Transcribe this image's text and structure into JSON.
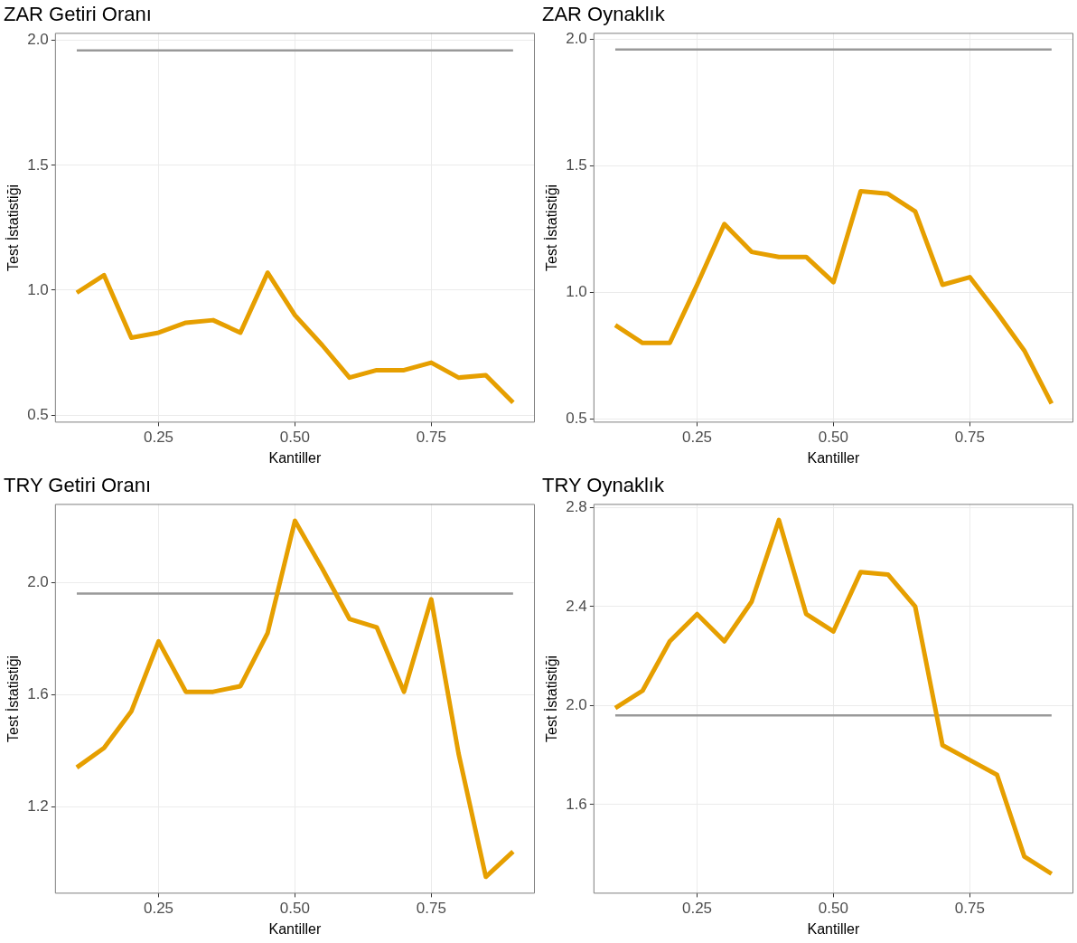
{
  "chart_data": [
    {
      "type": "line",
      "title": "ZAR Getiri Oranı",
      "xlabel": "Kantiller",
      "ylabel": "Test İstatistiği",
      "grid": true,
      "marker": "none",
      "xlim": [
        0.06,
        0.94
      ],
      "ylim": [
        0.47,
        2.03
      ],
      "xticks": [
        {
          "value": 0.25,
          "label": "0.25"
        },
        {
          "value": 0.5,
          "label": "0.50"
        },
        {
          "value": 0.75,
          "label": "0.75"
        }
      ],
      "yticks": [
        {
          "value": 0.5,
          "label": "0.5"
        },
        {
          "value": 1,
          "label": "1.0"
        },
        {
          "value": 1.5,
          "label": "1.5"
        },
        {
          "value": 2,
          "label": "2.0"
        }
      ],
      "x": [
        0.1,
        0.15,
        0.2,
        0.25,
        0.3,
        0.35,
        0.4,
        0.45,
        0.5,
        0.55,
        0.6,
        0.65,
        0.7,
        0.75,
        0.8,
        0.85,
        0.9
      ],
      "series": [
        {
          "color": "#e69f00",
          "values": [
            0.99,
            1.06,
            0.81,
            0.83,
            0.87,
            0.88,
            0.83,
            1.07,
            0.9,
            0.78,
            0.65,
            0.68,
            0.68,
            0.71,
            0.65,
            0.66,
            0.55
          ]
        },
        {
          "color": "#999999",
          "values": [
            1.96,
            1.96,
            1.96,
            1.96,
            1.96,
            1.96,
            1.96,
            1.96,
            1.96,
            1.96,
            1.96,
            1.96,
            1.96,
            1.96,
            1.96,
            1.96,
            1.96
          ]
        }
      ]
    },
    {
      "type": "line",
      "title": "ZAR Oynaklık",
      "xlabel": "Kantiller",
      "ylabel": "Test İstatistiği",
      "grid": true,
      "marker": "none",
      "xlim": [
        0.06,
        0.94
      ],
      "ylim": [
        0.485,
        2.026
      ],
      "xticks": [
        {
          "value": 0.25,
          "label": "0.25"
        },
        {
          "value": 0.5,
          "label": "0.50"
        },
        {
          "value": 0.75,
          "label": "0.75"
        }
      ],
      "yticks": [
        {
          "value": 0.5,
          "label": "0.5"
        },
        {
          "value": 1,
          "label": "1.0"
        },
        {
          "value": 1.5,
          "label": "1.5"
        },
        {
          "value": 2,
          "label": "2.0"
        }
      ],
      "x": [
        0.1,
        0.15,
        0.2,
        0.25,
        0.3,
        0.35,
        0.4,
        0.45,
        0.5,
        0.55,
        0.6,
        0.65,
        0.7,
        0.75,
        0.8,
        0.85,
        0.9
      ],
      "series": [
        {
          "color": "#e69f00",
          "values": [
            0.87,
            0.8,
            0.8,
            1.03,
            1.27,
            1.16,
            1.14,
            1.14,
            1.04,
            1.4,
            1.39,
            1.32,
            1.03,
            1.06,
            0.92,
            0.77,
            0.56
          ]
        },
        {
          "color": "#999999",
          "values": [
            1.96,
            1.96,
            1.96,
            1.96,
            1.96,
            1.96,
            1.96,
            1.96,
            1.96,
            1.96,
            1.96,
            1.96,
            1.96,
            1.96,
            1.96,
            1.96,
            1.96
          ]
        }
      ]
    },
    {
      "type": "line",
      "title": "TRY Getiri Oranı",
      "xlabel": "Kantiller",
      "ylabel": "Test İstatistiği",
      "grid": true,
      "marker": "none",
      "xlim": [
        0.06,
        0.94
      ],
      "ylim": [
        0.89,
        2.28
      ],
      "xticks": [
        {
          "value": 0.25,
          "label": "0.25"
        },
        {
          "value": 0.5,
          "label": "0.50"
        },
        {
          "value": 0.75,
          "label": "0.75"
        }
      ],
      "yticks": [
        {
          "value": 1.2,
          "label": "1.2"
        },
        {
          "value": 1.6,
          "label": "1.6"
        },
        {
          "value": 2,
          "label": "2.0"
        }
      ],
      "x": [
        0.1,
        0.15,
        0.2,
        0.25,
        0.3,
        0.35,
        0.4,
        0.45,
        0.5,
        0.55,
        0.6,
        0.65,
        0.7,
        0.75,
        0.8,
        0.85,
        0.9
      ],
      "series": [
        {
          "color": "#e69f00",
          "values": [
            1.34,
            1.41,
            1.54,
            1.79,
            1.61,
            1.61,
            1.63,
            1.82,
            2.22,
            2.05,
            1.87,
            1.84,
            1.61,
            1.94,
            1.39,
            0.95,
            1.04
          ]
        },
        {
          "color": "#999999",
          "values": [
            1.96,
            1.96,
            1.96,
            1.96,
            1.96,
            1.96,
            1.96,
            1.96,
            1.96,
            1.96,
            1.96,
            1.96,
            1.96,
            1.96,
            1.96,
            1.96,
            1.96
          ]
        }
      ]
    },
    {
      "type": "line",
      "title": "TRY Oynaklık",
      "xlabel": "Kantiller",
      "ylabel": "Test İstatistiği",
      "grid": true,
      "marker": "none",
      "xlim": [
        0.06,
        0.94
      ],
      "ylim": [
        1.24,
        2.815
      ],
      "xticks": [
        {
          "value": 0.25,
          "label": "0.25"
        },
        {
          "value": 0.5,
          "label": "0.50"
        },
        {
          "value": 0.75,
          "label": "0.75"
        }
      ],
      "yticks": [
        {
          "value": 1.6,
          "label": "1.6"
        },
        {
          "value": 2,
          "label": "2.0"
        },
        {
          "value": 2.4,
          "label": "2.4"
        },
        {
          "value": 2.8,
          "label": "2.8"
        }
      ],
      "x": [
        0.1,
        0.15,
        0.2,
        0.25,
        0.3,
        0.35,
        0.4,
        0.45,
        0.5,
        0.55,
        0.6,
        0.65,
        0.7,
        0.75,
        0.8,
        0.85,
        0.9
      ],
      "series": [
        {
          "color": "#e69f00",
          "values": [
            1.99,
            2.06,
            2.26,
            2.37,
            2.26,
            2.42,
            2.75,
            2.37,
            2.3,
            2.54,
            2.53,
            2.4,
            1.84,
            1.78,
            1.72,
            1.39,
            1.32
          ]
        },
        {
          "color": "#999999",
          "values": [
            1.96,
            1.96,
            1.96,
            1.96,
            1.96,
            1.96,
            1.96,
            1.96,
            1.96,
            1.96,
            1.96,
            1.96,
            1.96,
            1.96,
            1.96,
            1.96,
            1.96
          ]
        }
      ]
    }
  ]
}
